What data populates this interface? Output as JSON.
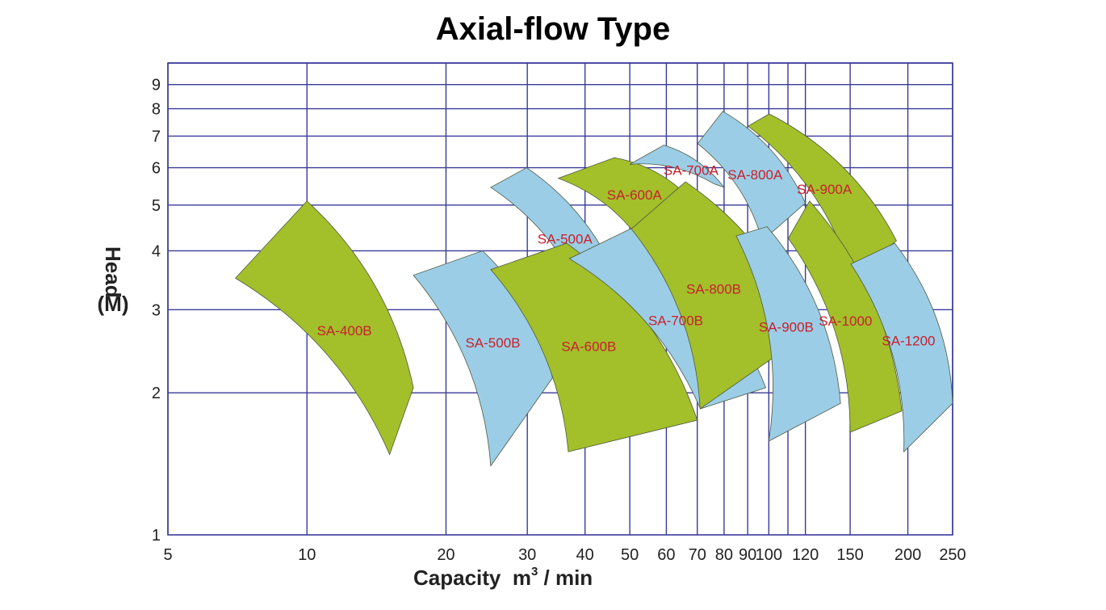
{
  "chart_data": {
    "type": "area",
    "title": "Axial-flow Type",
    "xlabel_prefix": "Capacity  m",
    "xlabel_sup": "3",
    "xlabel_suffix": " / min",
    "ylabel_line1": "Head",
    "ylabel_line2": "(M)",
    "xscale": "log",
    "yscale": "log",
    "xlim": [
      5,
      250
    ],
    "ylim": [
      1,
      10
    ],
    "x_ticks": [
      5,
      10,
      20,
      30,
      40,
      50,
      60,
      70,
      80,
      90,
      100,
      120,
      150,
      200,
      250
    ],
    "x_grid": [
      5,
      10,
      20,
      30,
      40,
      50,
      60,
      70,
      80,
      90,
      100,
      110,
      120,
      150,
      200,
      250
    ],
    "y_ticks": [
      1,
      2,
      3,
      4,
      5,
      6,
      7,
      8,
      9
    ],
    "y_grid": [
      2,
      3,
      4,
      5,
      6,
      7,
      8,
      9,
      10
    ],
    "grid": true,
    "colors": {
      "green": "#a3bf2a",
      "blue": "#9ccde6",
      "grid": "#3a3a9a",
      "label": "#c8202c"
    },
    "regions": [
      {
        "name": "SA-400B",
        "color": "green",
        "corners": [
          [
            10.0,
            5.1
          ],
          [
            17.0,
            2.05
          ],
          [
            15.1,
            1.48
          ],
          [
            7.0,
            3.5
          ]
        ]
      },
      {
        "name": "SA-500A",
        "color": "blue",
        "corners": [
          [
            29.9,
            6.0
          ],
          [
            48.0,
            3.3
          ],
          [
            40.7,
            3.0
          ],
          [
            25.0,
            5.45
          ]
        ]
      },
      {
        "name": "SA-600A",
        "color": "green",
        "corners": [
          [
            46.3,
            6.3
          ],
          [
            67.0,
            5.2
          ],
          [
            53.7,
            4.1
          ],
          [
            35.0,
            5.7
          ]
        ]
      },
      {
        "name": "SA-700A",
        "color": "blue",
        "corners": [
          [
            59.3,
            6.7
          ],
          [
            80.0,
            5.45
          ],
          [
            76.0,
            5.55
          ],
          [
            50.0,
            6.1
          ]
        ]
      },
      {
        "name": "SA-800A",
        "color": "blue",
        "corners": [
          [
            79.5,
            7.9
          ],
          [
            120.0,
            5.05
          ],
          [
            96.8,
            4.2
          ],
          [
            70.1,
            6.75
          ]
        ]
      },
      {
        "name": "SA-900A",
        "color": "green",
        "corners": [
          [
            100.2,
            7.8
          ],
          [
            189.0,
            4.2
          ],
          [
            151.0,
            3.55
          ],
          [
            90.2,
            7.35
          ]
        ]
      },
      {
        "name": "SA-500B",
        "color": "blue",
        "corners": [
          [
            24.0,
            4.0
          ],
          [
            34.0,
            2.15
          ],
          [
            25.0,
            1.4
          ],
          [
            17.0,
            3.55
          ]
        ]
      },
      {
        "name": "SA-600B",
        "color": "green",
        "corners": [
          [
            36.5,
            4.15
          ],
          [
            70.0,
            1.75
          ],
          [
            36.8,
            1.5
          ],
          [
            25.0,
            3.65
          ]
        ]
      },
      {
        "name": "SA-700B",
        "color": "blue",
        "corners": [
          [
            51.3,
            4.5
          ],
          [
            98.5,
            2.05
          ],
          [
            71.1,
            1.85
          ],
          [
            37.0,
            3.85
          ]
        ]
      },
      {
        "name": "SA-800B",
        "color": "green",
        "corners": [
          [
            66.0,
            5.6
          ],
          [
            120.0,
            2.65
          ],
          [
            71.0,
            1.85
          ],
          [
            50.4,
            4.45
          ]
        ]
      },
      {
        "name": "SA-900B",
        "color": "blue",
        "corners": [
          [
            99.1,
            4.5
          ],
          [
            143.0,
            1.9
          ],
          [
            100.0,
            1.58
          ],
          [
            85.0,
            4.3
          ]
        ]
      },
      {
        "name": "SA-1000",
        "color": "green",
        "corners": [
          [
            122.5,
            5.1
          ],
          [
            194.0,
            1.83
          ],
          [
            150.0,
            1.65
          ],
          [
            110.2,
            4.25
          ]
        ]
      },
      {
        "name": "SA-1200",
        "color": "blue",
        "corners": [
          [
            187.4,
            4.15
          ],
          [
            250.0,
            1.9
          ],
          [
            196.0,
            1.5
          ],
          [
            150.5,
            3.75
          ]
        ]
      }
    ]
  }
}
